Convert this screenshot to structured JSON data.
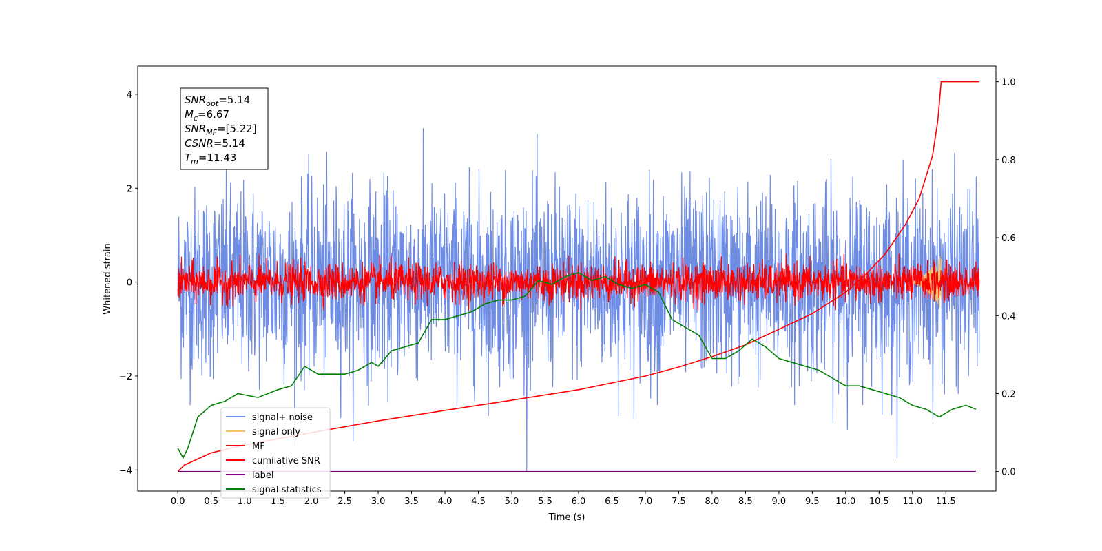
{
  "chart_data": {
    "type": "line",
    "title": "",
    "xlabel": "Time (s)",
    "ylabel": "Whitened strain",
    "xlim": [
      -0.6,
      12.25
    ],
    "ylim": [
      -4.45,
      4.6
    ],
    "ylim_right": [
      -0.05,
      1.04
    ],
    "x_ticks": [
      0.0,
      0.5,
      1.0,
      1.5,
      2.0,
      2.5,
      3.0,
      3.5,
      4.0,
      4.5,
      5.0,
      5.5,
      6.0,
      6.5,
      7.0,
      7.5,
      8.0,
      8.5,
      9.0,
      9.5,
      10.0,
      10.5,
      11.0,
      11.5
    ],
    "x_tick_labels": [
      "0.0",
      "0.5",
      "1.0",
      "1.5",
      "2.0",
      "2.5",
      "3.0",
      "3.5",
      "4.0",
      "4.5",
      "5.0",
      "5.5",
      "6.0",
      "6.5",
      "7.0",
      "7.5",
      "8.0",
      "8.5",
      "9.0",
      "9.5",
      "10.0",
      "10.5",
      "11.0",
      "11.5"
    ],
    "y_ticks": [
      -4,
      -2,
      0,
      2,
      4
    ],
    "y_tick_labels": [
      "−4",
      "−2",
      "0",
      "2",
      "4"
    ],
    "y_ticks_right": [
      0.0,
      0.2,
      0.4,
      0.6,
      0.8,
      1.0
    ],
    "y_tick_labels_right": [
      "0.0",
      "0.2",
      "0.4",
      "0.6",
      "0.8",
      "1.0"
    ],
    "grid": false,
    "legend_position": "lower-left",
    "stats_box": {
      "lines": [
        {
          "base": "SNR",
          "sub": "opt",
          "value": "=5.14"
        },
        {
          "base": "M",
          "sub": "c",
          "value": "=6.67"
        },
        {
          "base": "SNR",
          "sub": "MF",
          "value": "=[5.22]"
        },
        {
          "base": "CSNR",
          "sub": "",
          "value": "=5.14"
        },
        {
          "base": "T",
          "sub": "m",
          "value": "=11.43"
        }
      ]
    },
    "series": [
      {
        "name": "signal+ noise",
        "color": "#6d8ce6",
        "axis": "left",
        "style": "noise",
        "x_range": [
          0,
          12
        ],
        "amplitude_typical": 1.0,
        "amplitude_peak": 4.1
      },
      {
        "name": "signal only",
        "color": "#f5c36b",
        "axis": "left",
        "style": "chirp",
        "x_range": [
          10.9,
          11.43
        ],
        "amplitude_peak": 0.6
      },
      {
        "name": "MF",
        "color": "#ff0000",
        "axis": "left",
        "style": "noise",
        "x_range": [
          0,
          12
        ],
        "amplitude_typical": 0.2,
        "amplitude_peak": 0.6
      },
      {
        "name": "cumilative SNR",
        "color": "#ff0000",
        "axis": "right",
        "x": [
          0.0,
          0.1,
          0.5,
          1.0,
          2.0,
          3.0,
          4.0,
          5.0,
          6.0,
          7.0,
          7.5,
          8.0,
          8.5,
          9.0,
          9.5,
          10.0,
          10.3,
          10.6,
          10.9,
          11.1,
          11.3,
          11.38,
          11.43,
          12.0
        ],
        "values": [
          0.0,
          0.017,
          0.048,
          0.068,
          0.1,
          0.13,
          0.157,
          0.183,
          0.21,
          0.245,
          0.268,
          0.295,
          0.325,
          0.365,
          0.405,
          0.46,
          0.505,
          0.56,
          0.635,
          0.7,
          0.81,
          0.9,
          1.0,
          1.0
        ]
      },
      {
        "name": "label",
        "color": "#800080",
        "axis": "right",
        "x": [
          0.0,
          11.95
        ],
        "values": [
          0.0,
          0.0
        ]
      },
      {
        "name": "signal statistics",
        "color": "#008000",
        "axis": "right",
        "x": [
          0.0,
          0.08,
          0.15,
          0.3,
          0.5,
          0.7,
          0.9,
          1.2,
          1.5,
          1.7,
          1.9,
          2.1,
          2.3,
          2.5,
          2.7,
          2.9,
          3.0,
          3.2,
          3.4,
          3.6,
          3.8,
          4.0,
          4.2,
          4.4,
          4.6,
          4.8,
          5.0,
          5.2,
          5.4,
          5.6,
          5.8,
          6.0,
          6.2,
          6.4,
          6.6,
          6.8,
          7.0,
          7.2,
          7.4,
          7.6,
          7.8,
          8.0,
          8.2,
          8.4,
          8.6,
          8.8,
          9.0,
          9.2,
          9.4,
          9.6,
          9.8,
          10.0,
          10.2,
          10.4,
          10.6,
          10.8,
          11.0,
          11.2,
          11.4,
          11.6,
          11.8,
          11.95
        ],
        "values": [
          0.06,
          0.035,
          0.06,
          0.14,
          0.17,
          0.18,
          0.2,
          0.19,
          0.21,
          0.22,
          0.27,
          0.25,
          0.25,
          0.25,
          0.26,
          0.28,
          0.27,
          0.31,
          0.32,
          0.33,
          0.39,
          0.39,
          0.4,
          0.41,
          0.43,
          0.44,
          0.44,
          0.45,
          0.49,
          0.48,
          0.5,
          0.51,
          0.49,
          0.5,
          0.48,
          0.47,
          0.48,
          0.46,
          0.39,
          0.37,
          0.35,
          0.29,
          0.29,
          0.31,
          0.34,
          0.32,
          0.29,
          0.28,
          0.27,
          0.26,
          0.24,
          0.22,
          0.22,
          0.21,
          0.2,
          0.19,
          0.17,
          0.16,
          0.14,
          0.16,
          0.17,
          0.16
        ]
      }
    ]
  }
}
